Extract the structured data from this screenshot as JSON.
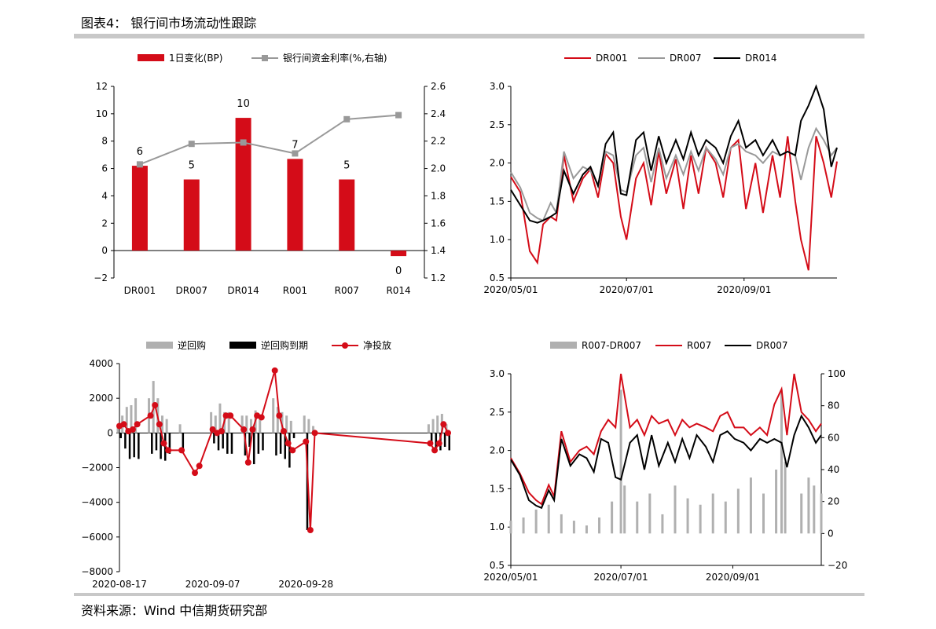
{
  "figure": {
    "title": "图表4： 银行间市场流动性跟踪",
    "source": "资料来源：Wind 中信期货研究部"
  },
  "colors": {
    "red": "#d40c18",
    "gray": "#999999",
    "black": "#000000",
    "bargray": "#b0b0b0"
  },
  "chart_data": [
    {
      "type": "bar",
      "categories": [
        "DR001",
        "DR007",
        "DR014",
        "R001",
        "R007",
        "R014"
      ],
      "series": [
        {
          "name": "1日变化(BP)",
          "kind": "bar",
          "axis": "left",
          "values": [
            6.2,
            5.2,
            9.7,
            6.7,
            5.2,
            -0.4
          ],
          "labels": [
            "6",
            "5",
            "10",
            "7",
            "5",
            "0"
          ]
        },
        {
          "name": "银行间资金利率(%,右轴)",
          "kind": "line",
          "axis": "right",
          "values": [
            2.03,
            2.18,
            2.19,
            2.11,
            2.36,
            2.39
          ]
        }
      ],
      "ylim": [
        -2,
        12
      ],
      "yticks": [
        "−2",
        "0",
        "2",
        "4",
        "6",
        "8",
        "10",
        "12"
      ],
      "y2lim": [
        1.2,
        2.6
      ],
      "y2ticks": [
        "1.2",
        "1.4",
        "1.6",
        "1.8",
        "2.0",
        "2.2",
        "2.4",
        "2.6"
      ],
      "legend": "top"
    },
    {
      "type": "line",
      "x_range": [
        "2020-05-01",
        "2020-10-20"
      ],
      "xticks": [
        "2020/05/01",
        "2020/07/01",
        "2020/09/01"
      ],
      "ylim": [
        0.5,
        3.0
      ],
      "yticks": [
        "0.5",
        "1.0",
        "1.5",
        "2.0",
        "2.5",
        "3.0"
      ],
      "legend": "top",
      "series": [
        {
          "name": "DR001",
          "x": [
            "2020-05-01",
            "2020-05-06",
            "2020-05-11",
            "2020-05-15",
            "2020-05-18",
            "2020-05-22",
            "2020-05-25",
            "2020-05-29",
            "2020-06-03",
            "2020-06-08",
            "2020-06-12",
            "2020-06-16",
            "2020-06-20",
            "2020-06-24",
            "2020-06-28",
            "2020-07-01",
            "2020-07-06",
            "2020-07-10",
            "2020-07-14",
            "2020-07-18",
            "2020-07-22",
            "2020-07-27",
            "2020-07-31",
            "2020-08-04",
            "2020-08-08",
            "2020-08-12",
            "2020-08-17",
            "2020-08-21",
            "2020-08-25",
            "2020-08-29",
            "2020-09-02",
            "2020-09-07",
            "2020-09-11",
            "2020-09-16",
            "2020-09-20",
            "2020-09-24",
            "2020-09-28",
            "2020-10-01",
            "2020-10-05",
            "2020-10-09",
            "2020-10-13",
            "2020-10-17",
            "2020-10-20"
          ],
          "y": [
            1.82,
            1.62,
            0.85,
            0.7,
            1.2,
            1.3,
            1.25,
            2.1,
            1.5,
            1.8,
            1.92,
            1.55,
            2.12,
            2.0,
            1.3,
            1.0,
            1.8,
            2.0,
            1.45,
            2.15,
            1.6,
            2.05,
            1.4,
            2.1,
            1.6,
            2.2,
            2.0,
            1.55,
            2.2,
            2.3,
            1.4,
            2.0,
            1.35,
            2.1,
            1.55,
            2.35,
            1.5,
            1.0,
            0.6,
            2.35,
            2.0,
            1.55,
            2.02
          ]
        },
        {
          "name": "DR007",
          "x": [
            "2020-05-01",
            "2020-05-06",
            "2020-05-11",
            "2020-05-15",
            "2020-05-18",
            "2020-05-22",
            "2020-05-25",
            "2020-05-29",
            "2020-06-03",
            "2020-06-08",
            "2020-06-12",
            "2020-06-16",
            "2020-06-20",
            "2020-06-24",
            "2020-06-28",
            "2020-07-01",
            "2020-07-06",
            "2020-07-10",
            "2020-07-14",
            "2020-07-18",
            "2020-07-22",
            "2020-07-27",
            "2020-07-31",
            "2020-08-04",
            "2020-08-08",
            "2020-08-12",
            "2020-08-17",
            "2020-08-21",
            "2020-08-25",
            "2020-08-29",
            "2020-09-02",
            "2020-09-07",
            "2020-09-11",
            "2020-09-16",
            "2020-09-20",
            "2020-09-24",
            "2020-09-28",
            "2020-10-01",
            "2020-10-05",
            "2020-10-09",
            "2020-10-13",
            "2020-10-17",
            "2020-10-20"
          ],
          "y": [
            1.88,
            1.68,
            1.35,
            1.28,
            1.25,
            1.48,
            1.35,
            2.15,
            1.8,
            1.95,
            1.9,
            1.72,
            2.15,
            2.1,
            1.65,
            1.62,
            2.1,
            2.2,
            1.75,
            2.2,
            1.8,
            2.1,
            1.85,
            2.15,
            1.9,
            2.2,
            2.05,
            1.85,
            2.2,
            2.25,
            2.15,
            2.1,
            2.0,
            2.15,
            2.1,
            2.15,
            2.1,
            1.78,
            2.2,
            2.45,
            2.3,
            2.1,
            2.2
          ]
        },
        {
          "name": "DR014",
          "x": [
            "2020-05-01",
            "2020-05-06",
            "2020-05-11",
            "2020-05-15",
            "2020-05-18",
            "2020-05-22",
            "2020-05-25",
            "2020-05-29",
            "2020-06-03",
            "2020-06-08",
            "2020-06-12",
            "2020-06-16",
            "2020-06-20",
            "2020-06-24",
            "2020-06-28",
            "2020-07-01",
            "2020-07-06",
            "2020-07-10",
            "2020-07-14",
            "2020-07-18",
            "2020-07-22",
            "2020-07-27",
            "2020-07-31",
            "2020-08-04",
            "2020-08-08",
            "2020-08-12",
            "2020-08-17",
            "2020-08-21",
            "2020-08-25",
            "2020-08-29",
            "2020-09-02",
            "2020-09-07",
            "2020-09-11",
            "2020-09-16",
            "2020-09-20",
            "2020-09-24",
            "2020-09-28",
            "2020-10-01",
            "2020-10-05",
            "2020-10-09",
            "2020-10-13",
            "2020-10-17",
            "2020-10-20"
          ],
          "y": [
            1.65,
            1.45,
            1.25,
            1.22,
            1.25,
            1.3,
            1.35,
            1.9,
            1.6,
            1.85,
            1.95,
            1.7,
            2.25,
            2.4,
            1.6,
            1.58,
            2.3,
            2.4,
            1.9,
            2.35,
            2.0,
            2.3,
            2.05,
            2.4,
            2.1,
            2.3,
            2.2,
            2.0,
            2.35,
            2.55,
            2.2,
            2.3,
            2.1,
            2.3,
            2.1,
            2.15,
            2.1,
            2.55,
            2.75,
            3.0,
            2.7,
            1.95,
            2.2
          ]
        }
      ]
    },
    {
      "type": "bar",
      "x_range": [
        "2020-08-17",
        "2020-10-30"
      ],
      "xticks": [
        "2020-08-17",
        "2020-09-07",
        "2020-09-28"
      ],
      "ylim": [
        -8000,
        4000
      ],
      "yticks": [
        "−8000",
        "−6000",
        "−4000",
        "−2000",
        "0",
        "2000",
        "4000"
      ],
      "legend": "top",
      "series": [
        {
          "name": "逆回购",
          "kind": "bar",
          "x": [
            "2020-08-17",
            "2020-08-18",
            "2020-08-19",
            "2020-08-20",
            "2020-08-21",
            "2020-08-24",
            "2020-08-25",
            "2020-08-26",
            "2020-08-27",
            "2020-08-28",
            "2020-08-31",
            "2020-09-07",
            "2020-09-08",
            "2020-09-09",
            "2020-09-10",
            "2020-09-11",
            "2020-09-14",
            "2020-09-15",
            "2020-09-16",
            "2020-09-17",
            "2020-09-18",
            "2020-09-21",
            "2020-09-22",
            "2020-09-23",
            "2020-09-24",
            "2020-09-25",
            "2020-09-28",
            "2020-09-29",
            "2020-09-30",
            "2020-10-26",
            "2020-10-27",
            "2020-10-28",
            "2020-10-29",
            "2020-10-30"
          ],
          "values": [
            500,
            1000,
            1500,
            1600,
            2000,
            2000,
            3000,
            2000,
            1000,
            800,
            500,
            1200,
            1000,
            1700,
            1200,
            1200,
            1000,
            1000,
            800,
            1300,
            1000,
            2000,
            1500,
            1200,
            1000,
            700,
            1000,
            800,
            400,
            500,
            800,
            1000,
            1100,
            500
          ]
        },
        {
          "name": "逆回购到期",
          "kind": "bar",
          "x": [
            "2020-08-17",
            "2020-08-18",
            "2020-08-19",
            "2020-08-20",
            "2020-08-21",
            "2020-08-24",
            "2020-08-25",
            "2020-08-26",
            "2020-08-27",
            "2020-08-28",
            "2020-08-31",
            "2020-09-07",
            "2020-09-08",
            "2020-09-09",
            "2020-09-10",
            "2020-09-11",
            "2020-09-14",
            "2020-09-15",
            "2020-09-16",
            "2020-09-17",
            "2020-09-18",
            "2020-09-21",
            "2020-09-22",
            "2020-09-23",
            "2020-09-24",
            "2020-09-25",
            "2020-09-28",
            "2020-09-29",
            "2020-09-30",
            "2020-10-26",
            "2020-10-27",
            "2020-10-28",
            "2020-10-29",
            "2020-10-30"
          ],
          "values": [
            -300,
            -900,
            -1500,
            -1400,
            -1500,
            -1200,
            -1000,
            -1500,
            -1600,
            -1200,
            -1000,
            -600,
            -1000,
            -900,
            -1200,
            -1200,
            -1300,
            -800,
            -1800,
            -1200,
            -1000,
            -1300,
            -1200,
            -1500,
            -2000,
            -300,
            -5600,
            0,
            0,
            -500,
            -1000,
            -1000,
            -800,
            -1000
          ]
        },
        {
          "name": "净投放",
          "kind": "line",
          "x": [
            "2020-08-17",
            "2020-08-18",
            "2020-08-19",
            "2020-08-20",
            "2020-08-21",
            "2020-08-24",
            "2020-08-25",
            "2020-08-26",
            "2020-08-27",
            "2020-08-28",
            "2020-08-31",
            "2020-09-03",
            "2020-09-04",
            "2020-09-07",
            "2020-09-08",
            "2020-09-09",
            "2020-09-10",
            "2020-09-11",
            "2020-09-14",
            "2020-09-15",
            "2020-09-16",
            "2020-09-17",
            "2020-09-18",
            "2020-09-21",
            "2020-09-22",
            "2020-09-23",
            "2020-09-24",
            "2020-09-25",
            "2020-09-28",
            "2020-09-29",
            "2020-09-30",
            "2020-10-26",
            "2020-10-27",
            "2020-10-28",
            "2020-10-29",
            "2020-10-30"
          ],
          "values": [
            400,
            500,
            100,
            200,
            500,
            1000,
            1600,
            500,
            -600,
            -1000,
            -1000,
            -2300,
            -1900,
            200,
            0,
            100,
            1000,
            1000,
            200,
            -1700,
            200,
            1000,
            900,
            3600,
            1000,
            100,
            -600,
            -1000,
            -500,
            -5600,
            0,
            -600,
            -1000,
            -600,
            500,
            0
          ]
        }
      ]
    },
    {
      "type": "line",
      "x_range": [
        "2020-05-01",
        "2020-10-20"
      ],
      "xticks": [
        "2020/05/01",
        "2020/07/01",
        "2020/09/01"
      ],
      "ylim": [
        0.5,
        3.0
      ],
      "yticks": [
        "0.5",
        "1.0",
        "1.5",
        "2.0",
        "2.5",
        "3.0"
      ],
      "y2lim": [
        -20,
        100
      ],
      "y2ticks": [
        "−20",
        "0",
        "20",
        "40",
        "60",
        "80",
        "100"
      ],
      "legend": "top",
      "series": [
        {
          "name": "R007-DR007",
          "kind": "bar",
          "axis": "right",
          "x": [
            "2020-05-01",
            "2020-05-08",
            "2020-05-15",
            "2020-05-22",
            "2020-05-29",
            "2020-06-05",
            "2020-06-12",
            "2020-06-19",
            "2020-06-26",
            "2020-07-01",
            "2020-07-03",
            "2020-07-10",
            "2020-07-17",
            "2020-07-24",
            "2020-07-31",
            "2020-08-07",
            "2020-08-14",
            "2020-08-21",
            "2020-08-28",
            "2020-09-04",
            "2020-09-11",
            "2020-09-18",
            "2020-09-25",
            "2020-09-28",
            "2020-09-30",
            "2020-10-09",
            "2020-10-13",
            "2020-10-16",
            "2020-10-20"
          ],
          "values": [
            8,
            10,
            15,
            18,
            12,
            8,
            5,
            10,
            20,
            90,
            30,
            20,
            25,
            12,
            30,
            22,
            18,
            25,
            20,
            28,
            35,
            25,
            40,
            90,
            45,
            25,
            35,
            30,
            25
          ]
        },
        {
          "name": "R007",
          "axis": "left",
          "x": [
            "2020-05-01",
            "2020-05-06",
            "2020-05-11",
            "2020-05-15",
            "2020-05-18",
            "2020-05-22",
            "2020-05-25",
            "2020-05-29",
            "2020-06-03",
            "2020-06-08",
            "2020-06-12",
            "2020-06-16",
            "2020-06-20",
            "2020-06-24",
            "2020-06-28",
            "2020-07-01",
            "2020-07-06",
            "2020-07-10",
            "2020-07-14",
            "2020-07-18",
            "2020-07-22",
            "2020-07-27",
            "2020-07-31",
            "2020-08-04",
            "2020-08-08",
            "2020-08-12",
            "2020-08-17",
            "2020-08-21",
            "2020-08-25",
            "2020-08-29",
            "2020-09-02",
            "2020-09-07",
            "2020-09-11",
            "2020-09-16",
            "2020-09-20",
            "2020-09-24",
            "2020-09-28",
            "2020-10-01",
            "2020-10-05",
            "2020-10-09",
            "2020-10-13",
            "2020-10-17",
            "2020-10-20"
          ],
          "y": [
            1.9,
            1.7,
            1.45,
            1.35,
            1.3,
            1.55,
            1.4,
            2.25,
            1.85,
            2.0,
            2.05,
            1.95,
            2.25,
            2.4,
            2.3,
            3.0,
            2.3,
            2.4,
            2.2,
            2.45,
            2.35,
            2.4,
            2.2,
            2.4,
            2.3,
            2.35,
            2.3,
            2.25,
            2.45,
            2.5,
            2.3,
            2.3,
            2.2,
            2.3,
            2.2,
            2.6,
            2.8,
            2.2,
            3.0,
            2.5,
            2.4,
            2.25,
            2.35
          ]
        },
        {
          "name": "DR007",
          "axis": "left",
          "x": [
            "2020-05-01",
            "2020-05-06",
            "2020-05-11",
            "2020-05-15",
            "2020-05-18",
            "2020-05-22",
            "2020-05-25",
            "2020-05-29",
            "2020-06-03",
            "2020-06-08",
            "2020-06-12",
            "2020-06-16",
            "2020-06-20",
            "2020-06-24",
            "2020-06-28",
            "2020-07-01",
            "2020-07-06",
            "2020-07-10",
            "2020-07-14",
            "2020-07-18",
            "2020-07-22",
            "2020-07-27",
            "2020-07-31",
            "2020-08-04",
            "2020-08-08",
            "2020-08-12",
            "2020-08-17",
            "2020-08-21",
            "2020-08-25",
            "2020-08-29",
            "2020-09-02",
            "2020-09-07",
            "2020-09-11",
            "2020-09-16",
            "2020-09-20",
            "2020-09-24",
            "2020-09-28",
            "2020-10-01",
            "2020-10-05",
            "2020-10-09",
            "2020-10-13",
            "2020-10-17",
            "2020-10-20"
          ],
          "y": [
            1.88,
            1.68,
            1.35,
            1.28,
            1.25,
            1.48,
            1.35,
            2.15,
            1.8,
            1.95,
            1.9,
            1.72,
            2.15,
            2.1,
            1.65,
            1.62,
            2.1,
            2.2,
            1.75,
            2.2,
            1.8,
            2.1,
            1.85,
            2.15,
            1.9,
            2.2,
            2.05,
            1.85,
            2.2,
            2.25,
            2.15,
            2.1,
            2.0,
            2.15,
            2.1,
            2.15,
            2.1,
            1.78,
            2.2,
            2.45,
            2.3,
            2.1,
            2.2
          ]
        }
      ]
    }
  ]
}
